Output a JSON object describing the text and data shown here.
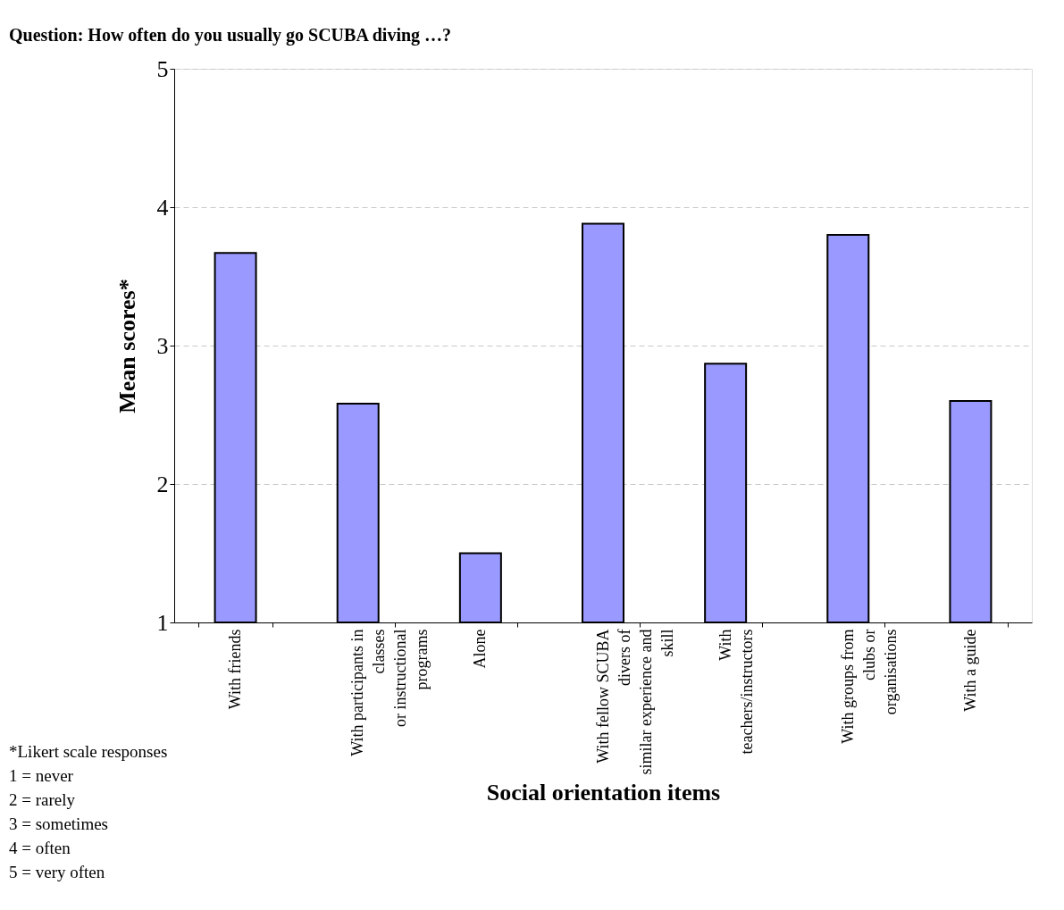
{
  "chart_data": {
    "type": "bar",
    "title": "Question: How often do you usually go SCUBA diving …?",
    "xlabel": "Social orientation items",
    "ylabel": "Mean scores*",
    "categories": [
      "With friends",
      "With participants in\nclasses\nor instructional\nprograms",
      "Alone",
      "With fellow SCUBA\ndivers of\nsimilar experience and\nskill",
      "With\nteachers/instructors",
      "With groups from\nclubs or\norganisations",
      "With a guide"
    ],
    "values": [
      3.67,
      2.58,
      1.5,
      3.88,
      2.87,
      3.8,
      2.6
    ],
    "color": "#9999ff",
    "ylim": [
      1,
      5
    ],
    "yticks": [
      1,
      2,
      3,
      4,
      5
    ],
    "grid": "y",
    "annotations": [
      "*Likert scale responses",
      "1 = never",
      "2 = rarely",
      "3 = sometimes",
      "4 = often",
      "5 = very often"
    ]
  }
}
